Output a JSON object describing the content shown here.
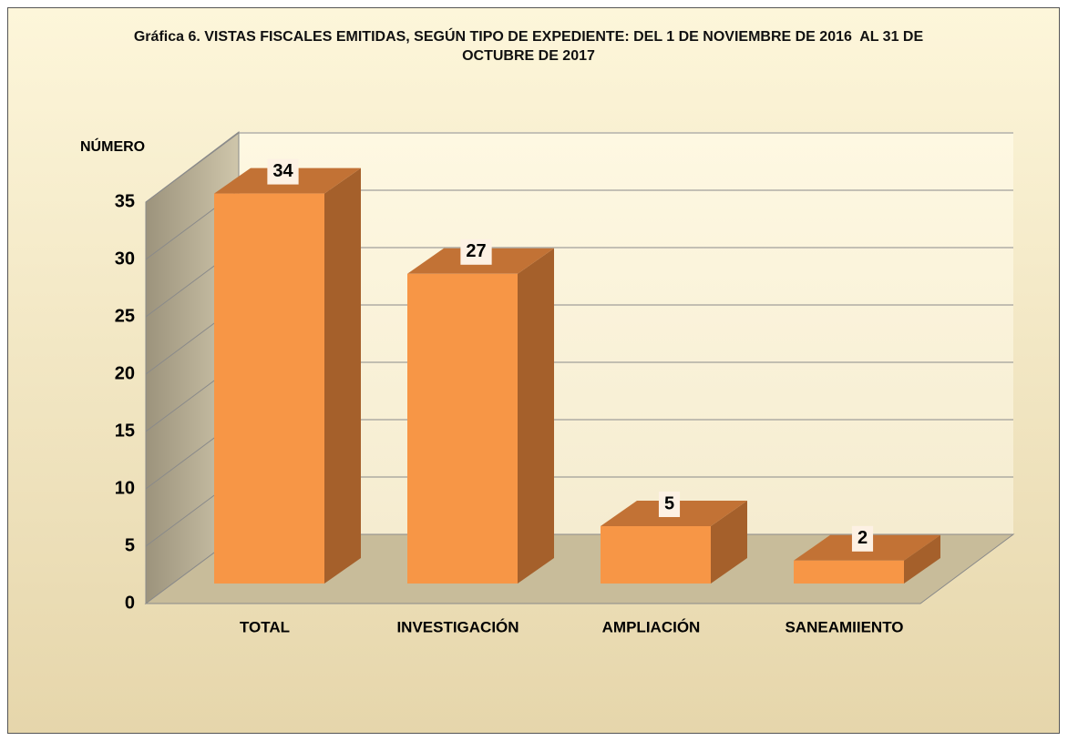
{
  "chart_data": {
    "type": "bar3d",
    "title": "Gráfica 6. VISTAS FISCALES EMITIDAS, SEGÚN TIPO DE EXPEDIENTE: DEL 1 DE NOVIEMBRE DE 2016  AL 31 DE OCTUBRE DE 2017",
    "y_label": "NÚMERO",
    "categories": [
      "TOTAL",
      "INVESTIGACIÓN",
      "AMPLIACIÓN",
      "SANEAMIIENTO"
    ],
    "values": [
      34,
      27,
      5,
      2
    ],
    "color": "#f79646",
    "ylim": [
      0,
      35
    ],
    "yticks": [
      0,
      5,
      10,
      15,
      20,
      25,
      30,
      35
    ],
    "grid": true
  }
}
